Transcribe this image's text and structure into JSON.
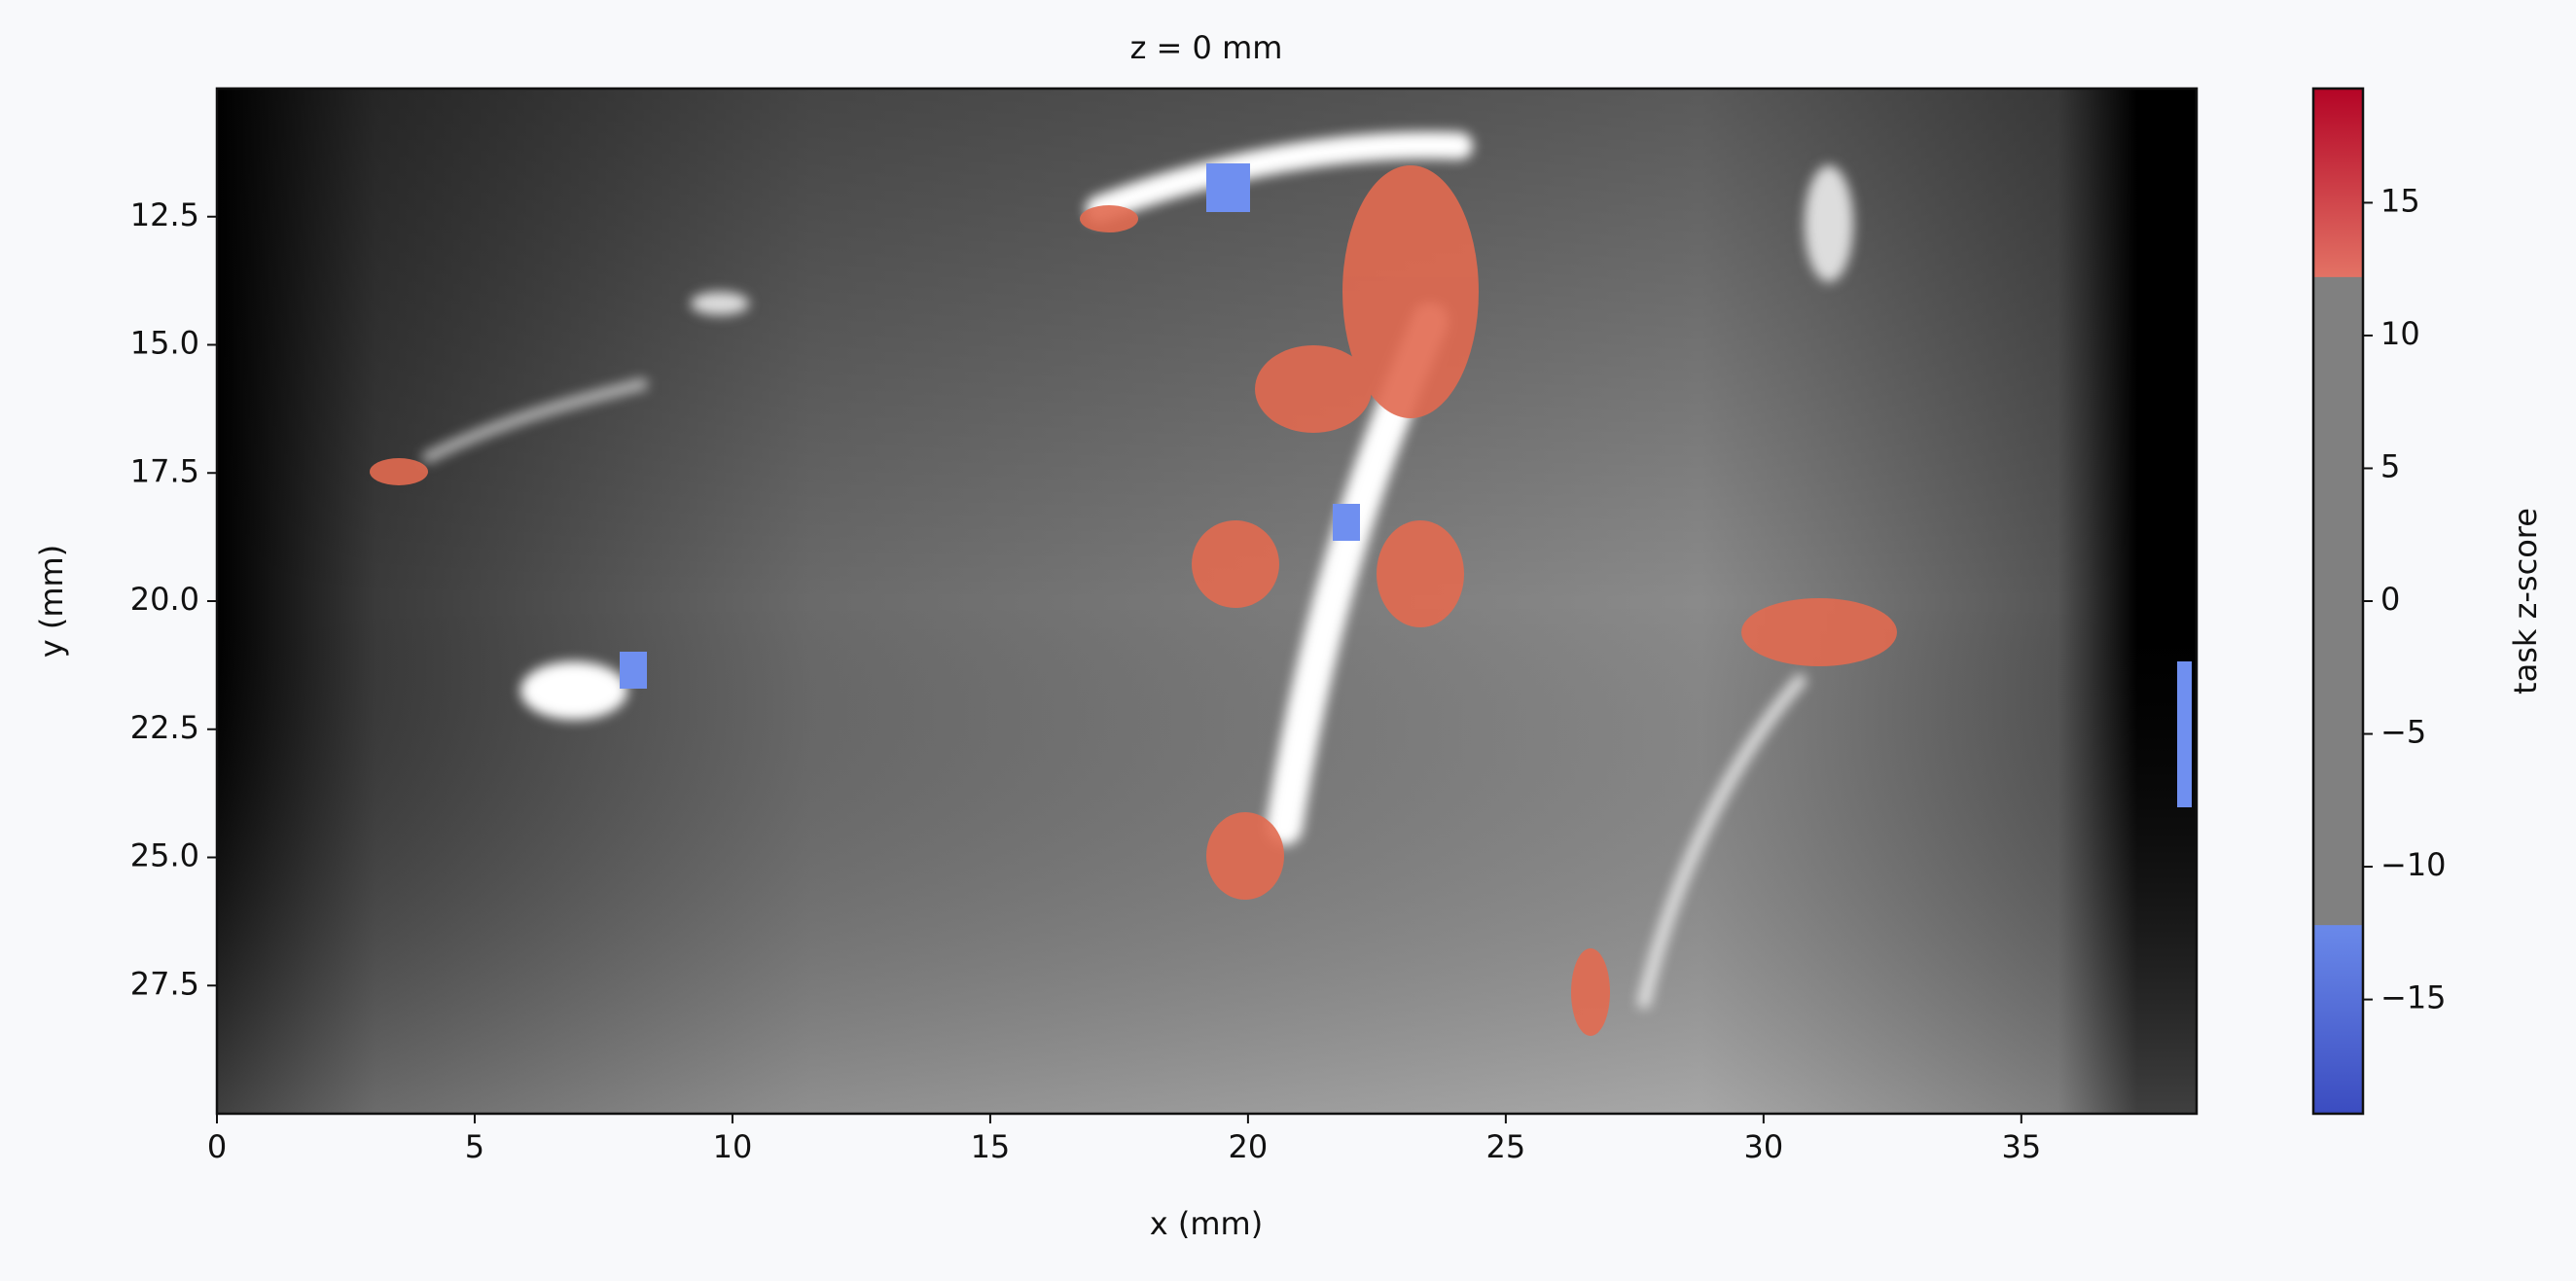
{
  "chart_data": {
    "type": "image",
    "title": "z = 0 mm",
    "x_label": "x (mm)",
    "y_label": "y (mm)",
    "colorbar_label": "task z-score",
    "xlim": [
      0,
      38.4
    ],
    "ylim": [
      30,
      10
    ],
    "xticks": [
      0,
      5,
      10,
      15,
      20,
      25,
      30,
      35
    ],
    "yticks": [
      12.5,
      {
        "value": 15,
        "label": "15.0"
      },
      17.5,
      {
        "value": 20,
        "label": "20.0"
      },
      22.5,
      {
        "value": 25,
        "label": "25.0"
      },
      27.5
    ],
    "clim": [
      -19.3,
      19.3
    ],
    "cticks": [
      {
        "value": -15,
        "label": "−15"
      },
      {
        "value": -10,
        "label": "−10"
      },
      {
        "value": -5,
        "label": "−5"
      },
      0,
      5,
      10,
      15
    ],
    "threshold": 12.2,
    "colormap": "coolwarm",
    "threshold_color": "#808080"
  }
}
